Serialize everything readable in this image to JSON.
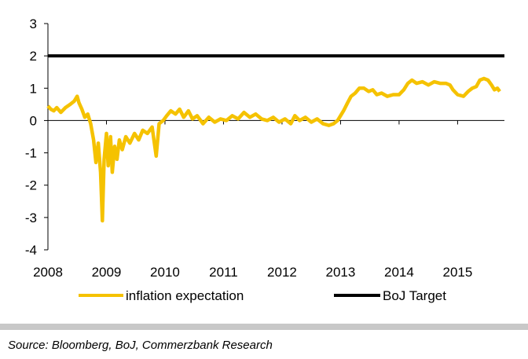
{
  "chart_data": {
    "type": "line",
    "title": "",
    "xlabel": "",
    "ylabel": "",
    "x_ticks": [
      "2008",
      "2009",
      "2010",
      "2011",
      "2012",
      "2013",
      "2014",
      "2015"
    ],
    "y_ticks": [
      "3",
      "2",
      "1",
      "0",
      "-1",
      "-2",
      "-3",
      "-4"
    ],
    "xlim": [
      2008,
      2015.8
    ],
    "ylim": [
      -4,
      3
    ],
    "grid": false,
    "legend_position": "bottom",
    "series": [
      {
        "name": "inflation expectation",
        "color": "#F5C200",
        "points": [
          [
            2008.0,
            0.45
          ],
          [
            2008.05,
            0.35
          ],
          [
            2008.1,
            0.3
          ],
          [
            2008.15,
            0.4
          ],
          [
            2008.22,
            0.25
          ],
          [
            2008.3,
            0.4
          ],
          [
            2008.38,
            0.5
          ],
          [
            2008.45,
            0.6
          ],
          [
            2008.5,
            0.75
          ],
          [
            2008.53,
            0.55
          ],
          [
            2008.58,
            0.35
          ],
          [
            2008.63,
            0.1
          ],
          [
            2008.68,
            0.2
          ],
          [
            2008.73,
            -0.1
          ],
          [
            2008.78,
            -0.6
          ],
          [
            2008.82,
            -1.3
          ],
          [
            2008.86,
            -0.7
          ],
          [
            2008.9,
            -1.6
          ],
          [
            2008.93,
            -3.1
          ],
          [
            2008.96,
            -1.2
          ],
          [
            2009.0,
            -0.4
          ],
          [
            2009.03,
            -1.4
          ],
          [
            2009.07,
            -0.5
          ],
          [
            2009.1,
            -1.6
          ],
          [
            2009.14,
            -0.8
          ],
          [
            2009.18,
            -1.2
          ],
          [
            2009.22,
            -0.6
          ],
          [
            2009.27,
            -0.9
          ],
          [
            2009.33,
            -0.5
          ],
          [
            2009.4,
            -0.7
          ],
          [
            2009.48,
            -0.4
          ],
          [
            2009.55,
            -0.6
          ],
          [
            2009.62,
            -0.3
          ],
          [
            2009.7,
            -0.4
          ],
          [
            2009.78,
            -0.2
          ],
          [
            2009.85,
            -1.1
          ],
          [
            2009.9,
            -0.1
          ],
          [
            2009.97,
            0.0
          ],
          [
            2010.03,
            0.15
          ],
          [
            2010.1,
            0.3
          ],
          [
            2010.18,
            0.2
          ],
          [
            2010.25,
            0.35
          ],
          [
            2010.32,
            0.1
          ],
          [
            2010.4,
            0.3
          ],
          [
            2010.47,
            0.05
          ],
          [
            2010.55,
            0.15
          ],
          [
            2010.65,
            -0.1
          ],
          [
            2010.75,
            0.1
          ],
          [
            2010.85,
            -0.05
          ],
          [
            2010.95,
            0.05
          ],
          [
            2011.05,
            0.0
          ],
          [
            2011.15,
            0.15
          ],
          [
            2011.25,
            0.05
          ],
          [
            2011.35,
            0.25
          ],
          [
            2011.45,
            0.1
          ],
          [
            2011.55,
            0.2
          ],
          [
            2011.65,
            0.05
          ],
          [
            2011.75,
            0.0
          ],
          [
            2011.85,
            0.1
          ],
          [
            2011.95,
            -0.05
          ],
          [
            2012.05,
            0.05
          ],
          [
            2012.15,
            -0.1
          ],
          [
            2012.22,
            0.15
          ],
          [
            2012.3,
            0.0
          ],
          [
            2012.4,
            0.1
          ],
          [
            2012.5,
            -0.05
          ],
          [
            2012.6,
            0.05
          ],
          [
            2012.7,
            -0.1
          ],
          [
            2012.8,
            -0.15
          ],
          [
            2012.88,
            -0.1
          ],
          [
            2012.95,
            0.0
          ],
          [
            2013.05,
            0.3
          ],
          [
            2013.12,
            0.55
          ],
          [
            2013.18,
            0.75
          ],
          [
            2013.25,
            0.85
          ],
          [
            2013.32,
            1.0
          ],
          [
            2013.4,
            1.0
          ],
          [
            2013.48,
            0.9
          ],
          [
            2013.55,
            0.95
          ],
          [
            2013.62,
            0.8
          ],
          [
            2013.7,
            0.85
          ],
          [
            2013.8,
            0.75
          ],
          [
            2013.9,
            0.8
          ],
          [
            2014.0,
            0.8
          ],
          [
            2014.08,
            0.95
          ],
          [
            2014.15,
            1.15
          ],
          [
            2014.22,
            1.25
          ],
          [
            2014.3,
            1.15
          ],
          [
            2014.4,
            1.2
          ],
          [
            2014.5,
            1.1
          ],
          [
            2014.6,
            1.2
          ],
          [
            2014.7,
            1.15
          ],
          [
            2014.8,
            1.15
          ],
          [
            2014.87,
            1.1
          ],
          [
            2014.92,
            0.95
          ],
          [
            2015.0,
            0.8
          ],
          [
            2015.1,
            0.75
          ],
          [
            2015.18,
            0.9
          ],
          [
            2015.25,
            1.0
          ],
          [
            2015.32,
            1.05
          ],
          [
            2015.38,
            1.25
          ],
          [
            2015.45,
            1.3
          ],
          [
            2015.52,
            1.25
          ],
          [
            2015.58,
            1.1
          ],
          [
            2015.63,
            0.95
          ],
          [
            2015.68,
            1.0
          ],
          [
            2015.72,
            0.9
          ]
        ]
      },
      {
        "name": "BoJ Target",
        "color": "#000000",
        "points": [
          [
            2008.0,
            2.0
          ],
          [
            2015.8,
            2.0
          ]
        ]
      }
    ]
  },
  "footer": {
    "source": "Source: Bloomberg, BoJ, Commerzbank Research"
  }
}
